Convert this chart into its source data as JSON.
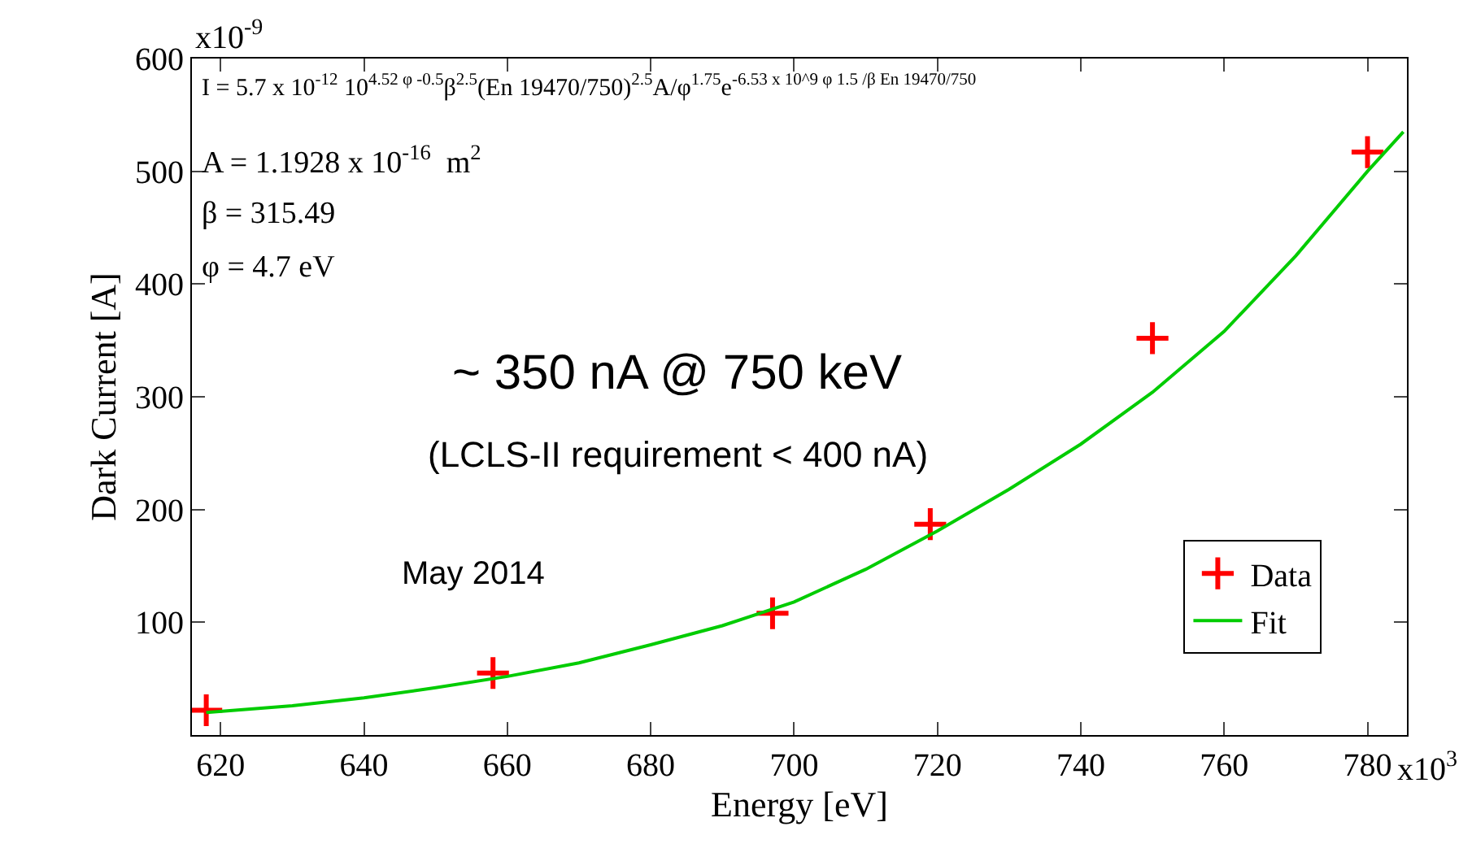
{
  "chart_data": {
    "type": "scatter",
    "xlabel": "Energy [eV]",
    "ylabel": "Dark Current [A]",
    "xlim": [
      616,
      785.5
    ],
    "ylim": [
      0,
      600
    ],
    "xticks": [
      620,
      640,
      660,
      680,
      700,
      720,
      740,
      760,
      780
    ],
    "yticks": [
      100,
      200,
      300,
      400,
      500,
      600
    ],
    "legend": "bottom right",
    "series": [
      {
        "name": "Data",
        "marker": "cross",
        "color": "#ff0000",
        "x": [
          618,
          658,
          697,
          719,
          750,
          780
        ],
        "values": [
          22,
          55,
          108,
          187,
          352,
          517
        ]
      },
      {
        "name": "Fit",
        "type": "line",
        "marker": "none",
        "line_style": "solid",
        "color": "#00cc00",
        "x": [
          618,
          630,
          640,
          650,
          660,
          670,
          680,
          690,
          700,
          710,
          720,
          730,
          740,
          750,
          760,
          770,
          780,
          785
        ],
        "values": [
          20,
          26,
          33,
          42,
          52,
          64,
          80,
          97,
          118,
          147,
          181,
          218,
          258,
          304,
          358,
          425,
          500,
          535
        ]
      }
    ],
    "annotations": [
      "I = 5.7 x 10$^{-12}$ 10$^{4.52 φ -0.5}$β$^{2.5}$(En 19470/750)$^{2.5}$A/φ$^{1.75}$e$^{-6.53 x 10^9 φ 1.5 /β En 19470/750}$",
      "A = 1.1928 x 10$^{-16}$  m$^{2}$",
      "β = 315.49",
      "φ = 4.7 eV",
      "~ 350 nA @ 750 keV",
      "(LCLS-II requirement < 400 nA)",
      "May 2014",
      "x10$^{3}$",
      "x10$^{-9}$"
    ]
  }
}
